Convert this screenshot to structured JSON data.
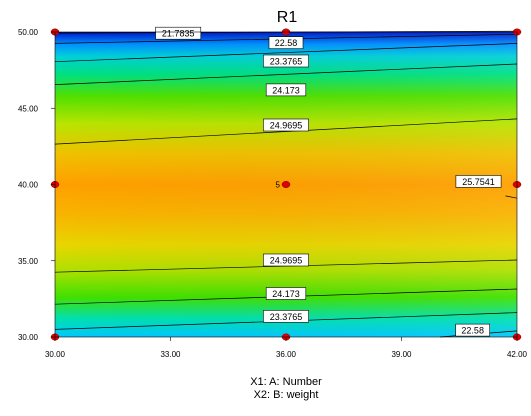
{
  "chart_data": {
    "type": "contour",
    "title": "R1",
    "xlabel": "X1: A: Number",
    "ylabel": "X2: B: weight",
    "xlim": [
      30,
      42
    ],
    "ylim": [
      30,
      50
    ],
    "x_ticks": [
      "30.00",
      "33.00",
      "36.00",
      "39.00",
      "42.00"
    ],
    "y_ticks": [
      "30.00",
      "35.00",
      "40.00",
      "45.00",
      "50.00"
    ],
    "contour_lines": [
      {
        "level": "21.7835",
        "points": [
          [
            30,
            49.93
          ],
          [
            42,
            50.05
          ]
        ],
        "label_at": [
          33.2,
          49.92
        ]
      },
      {
        "level": "22.58",
        "points": [
          [
            30,
            49.25
          ],
          [
            42,
            49.85
          ]
        ],
        "label_at": [
          36.0,
          49.3
        ]
      },
      {
        "level": "23.3765",
        "points": [
          [
            30,
            48.05
          ],
          [
            42,
            49.25
          ]
        ],
        "label_at": [
          36.0,
          48.1
        ]
      },
      {
        "level": "24.173",
        "points": [
          [
            30,
            46.55
          ],
          [
            42,
            47.9
          ]
        ],
        "label_at": [
          36.0,
          46.2
        ]
      },
      {
        "level": "24.9695",
        "points": [
          [
            30,
            42.65
          ],
          [
            42,
            44.3
          ]
        ],
        "label_at": [
          36.0,
          43.9
        ]
      },
      {
        "level": "25.7541",
        "points": [
          [
            41.7,
            39.25
          ],
          [
            42,
            39.1
          ]
        ],
        "label_at": [
          41.0,
          40.2
        ]
      },
      {
        "level": "24.9695",
        "points": [
          [
            30,
            34.25
          ],
          [
            42,
            35.05
          ]
        ],
        "label_at": [
          36.0,
          35.05
        ]
      },
      {
        "level": "24.173",
        "points": [
          [
            30,
            32.15
          ],
          [
            42,
            33.15
          ]
        ],
        "label_at": [
          36.0,
          32.85
        ]
      },
      {
        "level": "23.3765",
        "points": [
          [
            30,
            30.5
          ],
          [
            42,
            31.6
          ]
        ],
        "label_at": [
          36.0,
          31.35
        ]
      },
      {
        "level": "22.58",
        "points": [
          [
            40,
            30.0
          ],
          [
            42,
            30.4
          ]
        ],
        "label_at": [
          40.85,
          30.45
        ]
      }
    ],
    "design_points": [
      [
        30,
        50
      ],
      [
        36,
        50
      ],
      [
        42,
        50
      ],
      [
        30,
        40
      ],
      [
        36,
        40
      ],
      [
        42,
        40
      ],
      [
        30,
        30
      ],
      [
        36,
        30
      ],
      [
        42,
        30
      ]
    ],
    "center_point_label": "5",
    "colors": {
      "low": "#0030ff",
      "mid": "#00e040",
      "high": "#ff9900",
      "point": "#e00000"
    }
  }
}
